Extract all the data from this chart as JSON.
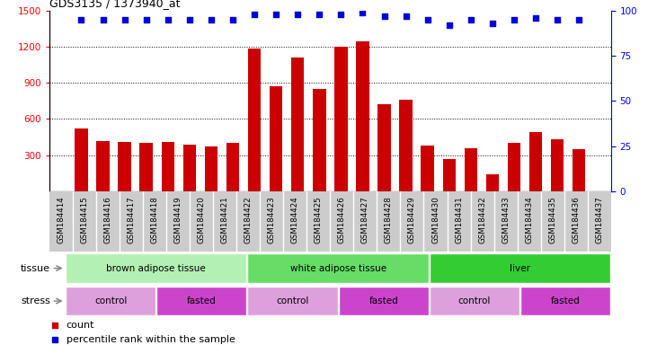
{
  "title": "GDS3135 / 1373940_at",
  "samples": [
    "GSM184414",
    "GSM184415",
    "GSM184416",
    "GSM184417",
    "GSM184418",
    "GSM184419",
    "GSM184420",
    "GSM184421",
    "GSM184422",
    "GSM184423",
    "GSM184424",
    "GSM184425",
    "GSM184426",
    "GSM184427",
    "GSM184428",
    "GSM184429",
    "GSM184430",
    "GSM184431",
    "GSM184432",
    "GSM184433",
    "GSM184434",
    "GSM184435",
    "GSM184436",
    "GSM184437"
  ],
  "counts": [
    520,
    420,
    410,
    405,
    410,
    390,
    370,
    400,
    1185,
    870,
    1110,
    850,
    1200,
    1240,
    720,
    760,
    380,
    270,
    360,
    140,
    400,
    490,
    430,
    350
  ],
  "percentile_ranks": [
    95,
    95,
    95,
    95,
    95,
    95,
    95,
    95,
    98,
    98,
    98,
    98,
    98,
    99,
    97,
    97,
    95,
    92,
    95,
    93,
    95,
    96,
    95,
    95
  ],
  "tissue_groups": [
    {
      "label": "brown adipose tissue",
      "start": 0,
      "end": 7,
      "color": "#b3f0b3"
    },
    {
      "label": "white adipose tissue",
      "start": 8,
      "end": 15,
      "color": "#66dd66"
    },
    {
      "label": "liver",
      "start": 16,
      "end": 23,
      "color": "#33cc33"
    }
  ],
  "stress_groups": [
    {
      "label": "control",
      "start": 0,
      "end": 3,
      "color": "#dda0dd"
    },
    {
      "label": "fasted",
      "start": 4,
      "end": 7,
      "color": "#cc44cc"
    },
    {
      "label": "control",
      "start": 8,
      "end": 11,
      "color": "#dda0dd"
    },
    {
      "label": "fasted",
      "start": 12,
      "end": 15,
      "color": "#cc44cc"
    },
    {
      "label": "control",
      "start": 16,
      "end": 19,
      "color": "#dda0dd"
    },
    {
      "label": "fasted",
      "start": 20,
      "end": 23,
      "color": "#cc44cc"
    }
  ],
  "ylim_left": [
    0,
    1500
  ],
  "yticks_left": [
    300,
    600,
    900,
    1200,
    1500
  ],
  "ylim_right": [
    0,
    100
  ],
  "yticks_right": [
    0,
    25,
    50,
    75,
    100
  ],
  "bar_color": "#cc0000",
  "dot_color": "#0000dd",
  "bar_width": 0.6
}
